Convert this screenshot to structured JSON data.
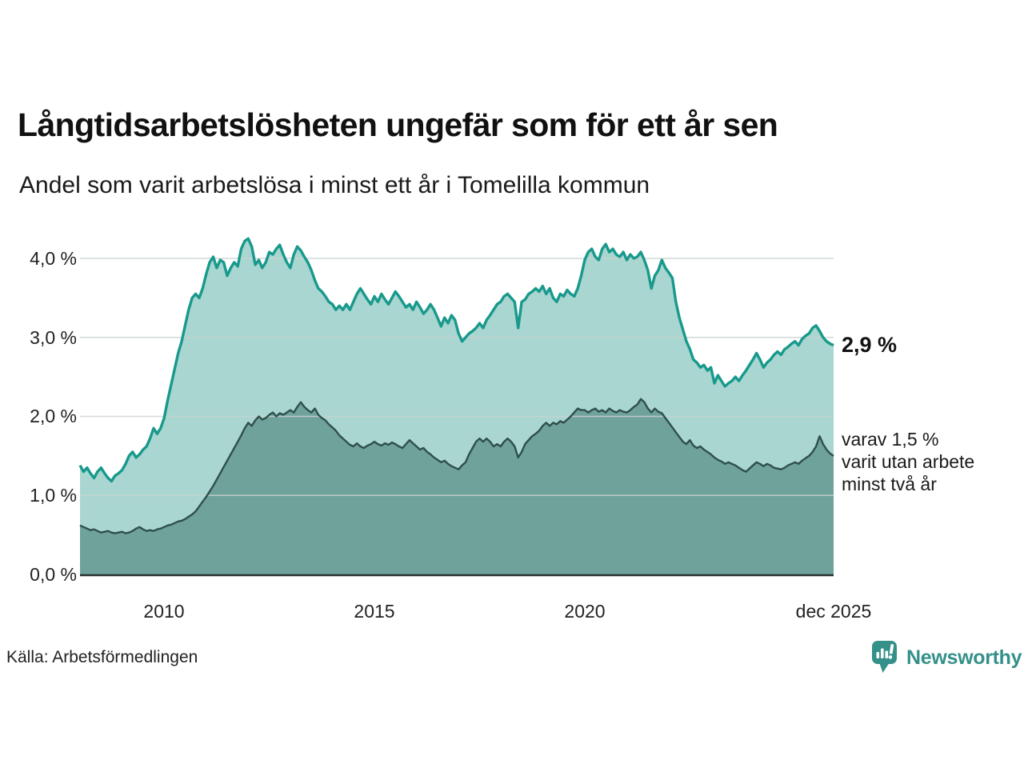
{
  "header": {
    "title": "Långtidsarbetslösheten ungefär som för ett år sen",
    "subtitle": "Andel som varit arbetslösa i minst ett år i Tomelilla kommun"
  },
  "annotations": {
    "series1_end_label": "2,9 %",
    "series2_end_line1": "varav 1,5 %",
    "series2_end_line2": "varit utan arbete",
    "series2_end_line3": "minst två år"
  },
  "footer": {
    "source": "Källa: Arbetsförmedlingen",
    "brand_name": "Newsworthy",
    "brand_icon": "newsworthy-speech-bubble-bar-chart-icon"
  },
  "colors": {
    "background": "#ffffff",
    "title_text": "#111111",
    "gridline": "#c9d3d1",
    "axis_line": "#26302e",
    "series1_line": "#18998c",
    "series1_fill": "#a9d6d0",
    "series2_line": "#2f4f4b",
    "series2_fill": "#70a29c",
    "brand_teal": "#35908a"
  },
  "chart_data": {
    "type": "area",
    "title": "Långtidsarbetslösheten ungefär som för ett år sen",
    "subtitle": "Andel som varit arbetslösa i minst ett år i Tomelilla kommun",
    "xlabel": "",
    "ylabel": "",
    "grid": true,
    "xlim": [
      2008.0,
      2025.9167
    ],
    "ylim": [
      0,
      4.33
    ],
    "xtick_labels": [
      "2010",
      "2015",
      "2020",
      "dec 2025"
    ],
    "xtick_values": [
      2010,
      2015,
      2020,
      2025.9167
    ],
    "ytick_labels": [
      "4,0 %",
      "3,0 %",
      "2,0 %",
      "1,0 %",
      "0,0 %"
    ],
    "ytick_values": [
      4,
      3,
      2,
      1,
      0
    ],
    "x_encoding": "monthly values, year = start_year + index/12",
    "start_year": 2008,
    "interval_months": 1,
    "series": [
      {
        "name": "Andel arbetslösa minst ett år",
        "end_value_label": "2,9 %",
        "end_value": 2.9,
        "color": "#18998c",
        "fill": "#a9d6d0",
        "values": [
          1.38,
          1.3,
          1.35,
          1.28,
          1.22,
          1.3,
          1.35,
          1.28,
          1.22,
          1.18,
          1.25,
          1.28,
          1.32,
          1.4,
          1.5,
          1.55,
          1.48,
          1.52,
          1.58,
          1.62,
          1.72,
          1.85,
          1.78,
          1.85,
          1.98,
          2.2,
          2.4,
          2.6,
          2.8,
          2.95,
          3.15,
          3.35,
          3.5,
          3.55,
          3.5,
          3.62,
          3.8,
          3.95,
          4.02,
          3.88,
          3.98,
          3.95,
          3.78,
          3.88,
          3.95,
          3.9,
          4.12,
          4.22,
          4.25,
          4.15,
          3.92,
          3.98,
          3.88,
          3.95,
          4.08,
          4.05,
          4.12,
          4.17,
          4.05,
          3.95,
          3.88,
          4.05,
          4.15,
          4.1,
          4.02,
          3.95,
          3.85,
          3.72,
          3.62,
          3.58,
          3.52,
          3.45,
          3.42,
          3.35,
          3.4,
          3.35,
          3.42,
          3.35,
          3.45,
          3.55,
          3.62,
          3.55,
          3.48,
          3.42,
          3.52,
          3.45,
          3.55,
          3.48,
          3.42,
          3.5,
          3.58,
          3.52,
          3.45,
          3.38,
          3.42,
          3.35,
          3.45,
          3.38,
          3.3,
          3.35,
          3.42,
          3.35,
          3.25,
          3.14,
          3.25,
          3.18,
          3.28,
          3.22,
          3.05,
          2.95,
          3.0,
          3.05,
          3.08,
          3.12,
          3.18,
          3.12,
          3.22,
          3.28,
          3.35,
          3.42,
          3.45,
          3.52,
          3.55,
          3.5,
          3.45,
          3.12,
          3.45,
          3.48,
          3.55,
          3.58,
          3.62,
          3.58,
          3.65,
          3.55,
          3.62,
          3.5,
          3.45,
          3.55,
          3.52,
          3.6,
          3.55,
          3.52,
          3.62,
          3.78,
          3.98,
          4.08,
          4.12,
          4.02,
          3.98,
          4.12,
          4.18,
          4.08,
          4.12,
          4.05,
          4.02,
          4.08,
          3.98,
          4.05,
          4.0,
          4.02,
          4.08,
          3.98,
          3.85,
          3.62,
          3.78,
          3.85,
          3.98,
          3.88,
          3.82,
          3.75,
          3.45,
          3.25,
          3.1,
          2.95,
          2.85,
          2.72,
          2.68,
          2.62,
          2.65,
          2.58,
          2.62,
          2.42,
          2.52,
          2.45,
          2.38,
          2.42,
          2.45,
          2.5,
          2.45,
          2.52,
          2.58,
          2.65,
          2.72,
          2.8,
          2.72,
          2.62,
          2.68,
          2.72,
          2.78,
          2.82,
          2.78,
          2.85,
          2.88,
          2.92,
          2.95,
          2.9,
          2.98,
          3.02,
          3.05,
          3.12,
          3.15,
          3.08,
          3.0,
          2.95,
          2.92,
          2.9
        ]
      },
      {
        "name": "Varav utan arbete minst två år",
        "end_value_label": "varav 1,5 % varit utan arbete minst två år",
        "end_value": 1.5,
        "color": "#2f4f4b",
        "fill": "#70a29c",
        "values": [
          0.62,
          0.6,
          0.58,
          0.56,
          0.57,
          0.55,
          0.53,
          0.54,
          0.55,
          0.53,
          0.52,
          0.53,
          0.54,
          0.52,
          0.53,
          0.55,
          0.58,
          0.6,
          0.57,
          0.55,
          0.56,
          0.55,
          0.57,
          0.58,
          0.6,
          0.62,
          0.63,
          0.65,
          0.67,
          0.68,
          0.7,
          0.73,
          0.76,
          0.8,
          0.86,
          0.92,
          0.98,
          1.05,
          1.12,
          1.2,
          1.28,
          1.36,
          1.44,
          1.52,
          1.6,
          1.68,
          1.76,
          1.85,
          1.92,
          1.88,
          1.95,
          2.0,
          1.96,
          1.98,
          2.02,
          2.05,
          2.0,
          2.04,
          2.02,
          2.05,
          2.08,
          2.05,
          2.12,
          2.18,
          2.12,
          2.08,
          2.05,
          2.1,
          2.02,
          1.98,
          1.95,
          1.9,
          1.86,
          1.82,
          1.76,
          1.72,
          1.68,
          1.64,
          1.62,
          1.66,
          1.62,
          1.6,
          1.63,
          1.65,
          1.68,
          1.65,
          1.63,
          1.66,
          1.64,
          1.67,
          1.65,
          1.62,
          1.6,
          1.65,
          1.7,
          1.66,
          1.62,
          1.58,
          1.6,
          1.55,
          1.52,
          1.48,
          1.45,
          1.42,
          1.44,
          1.4,
          1.37,
          1.35,
          1.33,
          1.38,
          1.42,
          1.52,
          1.6,
          1.68,
          1.72,
          1.68,
          1.72,
          1.68,
          1.62,
          1.65,
          1.62,
          1.68,
          1.72,
          1.68,
          1.62,
          1.48,
          1.55,
          1.65,
          1.7,
          1.75,
          1.78,
          1.82,
          1.88,
          1.92,
          1.88,
          1.92,
          1.9,
          1.94,
          1.92,
          1.96,
          2.0,
          2.05,
          2.1,
          2.08,
          2.08,
          2.05,
          2.08,
          2.1,
          2.06,
          2.08,
          2.05,
          2.1,
          2.07,
          2.05,
          2.08,
          2.06,
          2.05,
          2.08,
          2.12,
          2.15,
          2.22,
          2.18,
          2.1,
          2.05,
          2.1,
          2.06,
          2.04,
          1.98,
          1.92,
          1.86,
          1.8,
          1.74,
          1.68,
          1.65,
          1.7,
          1.63,
          1.6,
          1.62,
          1.58,
          1.55,
          1.52,
          1.48,
          1.45,
          1.43,
          1.4,
          1.42,
          1.4,
          1.38,
          1.35,
          1.32,
          1.3,
          1.34,
          1.38,
          1.42,
          1.4,
          1.37,
          1.4,
          1.38,
          1.35,
          1.34,
          1.33,
          1.35,
          1.38,
          1.4,
          1.42,
          1.4,
          1.44,
          1.47,
          1.5,
          1.55,
          1.62,
          1.75,
          1.65,
          1.58,
          1.53,
          1.5
        ]
      }
    ]
  }
}
